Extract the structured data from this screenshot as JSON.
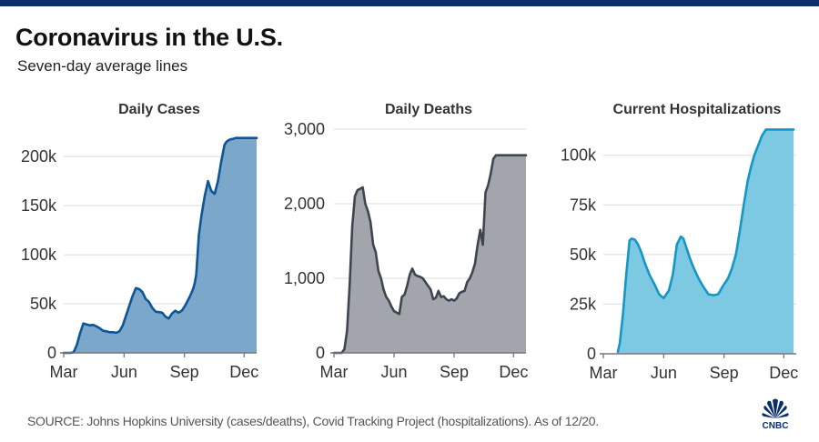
{
  "header": {
    "title": "Coronavirus in the U.S.",
    "subtitle": "Seven-day average lines"
  },
  "footer": {
    "source": "SOURCE: Johns Hopkins University (cases/deaths), Covid Tracking Project (hospitalizations). As of 12/20.",
    "logo_text": "CNBC"
  },
  "colors": {
    "topbar": "#0a2f6b",
    "cases_line": "#0d5596",
    "cases_fill": "#7ba7cb",
    "deaths_line": "#3d4650",
    "deaths_fill": "#a2a6ac",
    "hosp_line": "#1596c4",
    "hosp_fill": "#7dc9e2",
    "logo": "#0a2f6b"
  },
  "chart_data": [
    {
      "type": "area",
      "title": "Daily Cases",
      "xlabel": "",
      "ylabel": "",
      "x_unit": "days since Mar 1, 2020",
      "xlim": [
        0,
        294
      ],
      "x_ticks": [
        {
          "label": "Mar",
          "x": 0
        },
        {
          "label": "Jun",
          "x": 92
        },
        {
          "label": "Sep",
          "x": 184
        },
        {
          "label": "Dec",
          "x": 275
        }
      ],
      "ylim": [
        0,
        215000
      ],
      "y_ticks": [
        {
          "label": "0",
          "y": 0
        },
        {
          "label": "50k",
          "y": 50000
        },
        {
          "label": "100k",
          "y": 100000
        },
        {
          "label": "150k",
          "y": 150000
        },
        {
          "label": "200k",
          "y": 200000
        }
      ],
      "grid": true,
      "x": [
        0,
        10,
        15,
        20,
        25,
        30,
        35,
        40,
        45,
        50,
        55,
        60,
        65,
        70,
        75,
        80,
        85,
        90,
        95,
        100,
        105,
        110,
        115,
        120,
        125,
        130,
        135,
        140,
        145,
        150,
        155,
        160,
        165,
        170,
        175,
        180,
        185,
        188,
        192,
        196,
        198,
        200,
        202,
        204,
        206,
        210,
        215,
        220,
        225,
        230,
        235,
        240,
        245,
        248,
        252,
        256,
        258,
        262,
        265,
        268,
        270,
        272,
        274,
        276,
        278,
        280,
        282,
        285,
        288,
        291,
        294
      ],
      "values": [
        0,
        0,
        500,
        8000,
        20000,
        30000,
        29000,
        28000,
        28500,
        27000,
        25000,
        22500,
        22000,
        21000,
        21000,
        20500,
        22000,
        28000,
        38000,
        48000,
        58000,
        66000,
        65000,
        62000,
        55000,
        52000,
        46000,
        42000,
        41500,
        41000,
        37000,
        35000,
        40000,
        43000,
        41000,
        43000,
        48000,
        52000,
        57000,
        63000,
        67000,
        72000,
        80000,
        100000,
        120000,
        140000,
        160000,
        175000,
        165000,
        162000,
        175000,
        195000,
        212000,
        215000,
        217000,
        218000,
        218000,
        219000,
        219000,
        219000,
        219000,
        219000,
        219000,
        219000,
        219000,
        219000,
        219000,
        219000,
        219000,
        219000,
        219000
      ]
    },
    {
      "type": "area",
      "title": "Daily Deaths",
      "xlabel": "",
      "ylabel": "",
      "x_unit": "days since Mar 1, 2020",
      "xlim": [
        0,
        294
      ],
      "x_ticks": [
        {
          "label": "Mar",
          "x": 0
        },
        {
          "label": "Jun",
          "x": 92
        },
        {
          "label": "Sep",
          "x": 184
        },
        {
          "label": "Dec",
          "x": 275
        }
      ],
      "ylim": [
        0,
        3000
      ],
      "y_ticks": [
        {
          "label": "0",
          "y": 0
        },
        {
          "label": "1,000",
          "y": 1000
        },
        {
          "label": "2,000",
          "y": 2000
        },
        {
          "label": "3,000",
          "y": 3000
        }
      ],
      "grid": true,
      "x": [
        0,
        12,
        16,
        20,
        24,
        28,
        32,
        36,
        40,
        44,
        48,
        52,
        56,
        60,
        64,
        68,
        72,
        76,
        80,
        84,
        88,
        92,
        96,
        100,
        104,
        108,
        112,
        116,
        120,
        124,
        128,
        132,
        136,
        140,
        144,
        148,
        152,
        156,
        160,
        164,
        168,
        172,
        176,
        180,
        184,
        188,
        192,
        196,
        200,
        204,
        208,
        212,
        216,
        220,
        224,
        228,
        232,
        236,
        240,
        244,
        248,
        252,
        256,
        260,
        262,
        264,
        268,
        272,
        276,
        280,
        284,
        288,
        292,
        294
      ],
      "values": [
        0,
        0,
        50,
        300,
        900,
        1700,
        2100,
        2180,
        2200,
        2220,
        2000,
        1900,
        1750,
        1450,
        1350,
        1100,
        1000,
        850,
        750,
        700,
        620,
        560,
        540,
        520,
        750,
        780,
        900,
        1050,
        1130,
        1050,
        1030,
        1020,
        1000,
        950,
        900,
        850,
        720,
        740,
        830,
        750,
        760,
        720,
        700,
        720,
        700,
        730,
        800,
        820,
        830,
        950,
        1000,
        1080,
        1200,
        1450,
        1650,
        1450,
        2150,
        2250,
        2400,
        2600,
        2650,
        2650,
        2650,
        2650,
        2650,
        2650,
        2650,
        2650,
        2650,
        2650,
        2650,
        2650,
        2650,
        2650
      ]
    },
    {
      "type": "area",
      "title": "Current Hospitalizations",
      "xlabel": "",
      "ylabel": "",
      "x_unit": "days since Mar 1, 2020",
      "xlim": [
        0,
        294
      ],
      "x_ticks": [
        {
          "label": "Mar",
          "x": 0
        },
        {
          "label": "Jun",
          "x": 92
        },
        {
          "label": "Sep",
          "x": 184
        },
        {
          "label": "Dec",
          "x": 275
        }
      ],
      "ylim": [
        0,
        115000
      ],
      "y_ticks": [
        {
          "label": "0",
          "y": 0
        },
        {
          "label": "25k",
          "y": 25000
        },
        {
          "label": "50k",
          "y": 50000
        },
        {
          "label": "75k",
          "y": 75000
        },
        {
          "label": "100k",
          "y": 100000
        }
      ],
      "grid": true,
      "x": [
        22,
        25,
        30,
        35,
        40,
        43,
        48,
        53,
        58,
        63,
        70,
        78,
        85,
        92,
        100,
        106,
        112,
        118,
        122,
        127,
        132,
        138,
        145,
        152,
        160,
        168,
        175,
        182,
        190,
        196,
        202,
        208,
        214,
        220,
        225,
        230,
        236,
        242,
        248,
        254,
        260,
        266,
        272,
        278,
        284,
        290
      ],
      "values": [
        1000,
        5000,
        20000,
        40000,
        57000,
        58000,
        57500,
        55000,
        51000,
        46000,
        40000,
        35000,
        30000,
        28000,
        32000,
        40000,
        55000,
        59000,
        58000,
        53000,
        48000,
        43000,
        38000,
        34000,
        30000,
        29500,
        30000,
        34000,
        38000,
        43000,
        50000,
        62000,
        75000,
        87000,
        94000,
        100000,
        105000,
        110000,
        113000,
        113000,
        113000,
        113000,
        113000,
        113000,
        113000,
        113000
      ]
    }
  ]
}
